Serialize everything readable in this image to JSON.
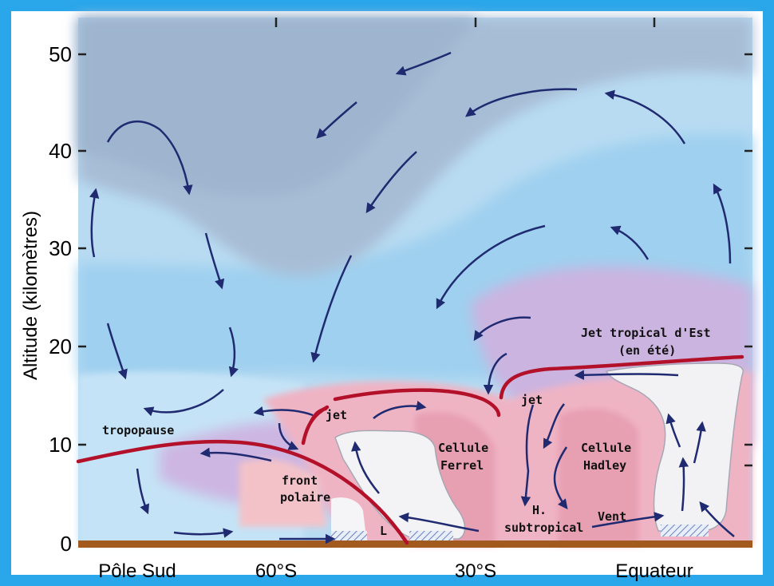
{
  "axes": {
    "y_title": "Altitude (kilomètres)",
    "y_ticks": [
      "0",
      "10",
      "20",
      "30",
      "40",
      "50"
    ],
    "x_ticks": [
      "Pôle Sud",
      "60°S",
      "30°S",
      "Equateur"
    ]
  },
  "labels": {
    "tropopause": "tropopause",
    "jet_left": "jet",
    "jet_center": "jet",
    "front_line1": "front",
    "front_line2": "polaire",
    "ferrel_line1": "Cellule",
    "ferrel_line2": "Ferrel",
    "hadley_line1": "Cellule",
    "hadley_line2": "Hadley",
    "jet_tropical_line1": "Jet tropical d'Est",
    "jet_tropical_line2": "(en été)",
    "hsub_line1": "H.",
    "hsub_line2": "subtropical",
    "vent": "Vent",
    "low": "L"
  },
  "colors": {
    "frame": "#2aa6ea",
    "stratosphere": "#a6c0d8",
    "sky_light": "#bfe0f4",
    "sky_mid": "#97cdee",
    "violet": "#c9b6e0",
    "pink": "#efb1c1",
    "jet_line": "#b3102a",
    "arrow": "#1f2a70",
    "ground": "#a35a1f"
  }
}
